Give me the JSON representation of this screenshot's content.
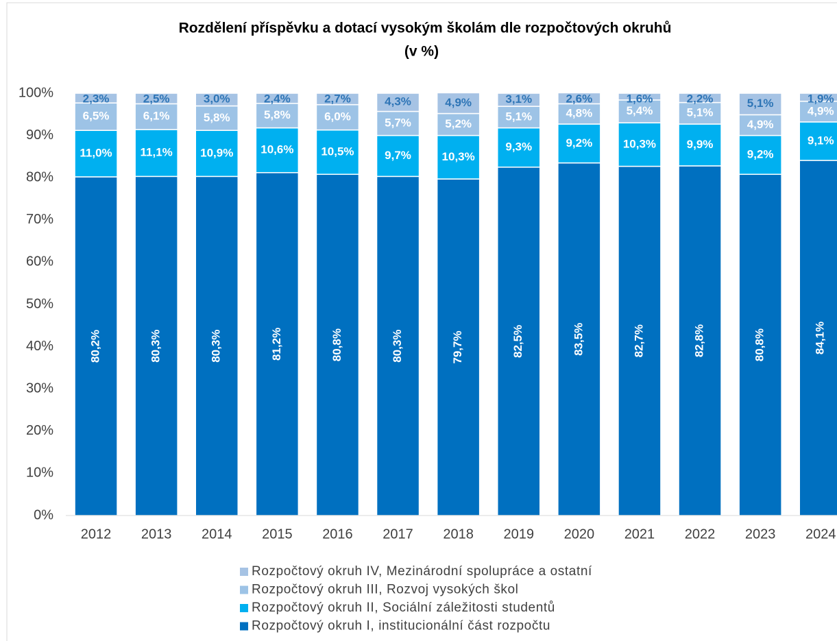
{
  "chart_data": {
    "type": "stacked_bar",
    "title": [
      "Rozdělení příspěvku a dotací vysokým školám dle rozpočtových okruhů",
      "(v %)"
    ],
    "categories": [
      "2012",
      "2013",
      "2014",
      "2015",
      "2016",
      "2017",
      "2018",
      "2019",
      "2020",
      "2021",
      "2022",
      "2023",
      "2024"
    ],
    "series": [
      {
        "name": "Rozpočtový okruh I, institucionální část rozpočtu",
        "color": "#0070c0",
        "label_color": "#ffffff",
        "values": [
          80.2,
          80.3,
          80.3,
          81.2,
          80.8,
          80.3,
          79.7,
          82.5,
          83.5,
          82.7,
          82.8,
          80.8,
          84.1
        ],
        "value_labels": [
          "80,2%",
          "80,3%",
          "80,3%",
          "81,2%",
          "80,8%",
          "80,3%",
          "79,7%",
          "82,5%",
          "83,5%",
          "82,7%",
          "82,8%",
          "80,8%",
          "84,1%"
        ]
      },
      {
        "name": "Rozpočtový okruh II, Sociální záležitosti studentů",
        "color": "#00b0f0",
        "label_color": "#ffffff",
        "values": [
          11.0,
          11.1,
          10.9,
          10.6,
          10.5,
          9.7,
          10.3,
          9.3,
          9.2,
          10.3,
          9.9,
          9.2,
          9.1
        ],
        "value_labels": [
          "11,0%",
          "11,1%",
          "10,9%",
          "10,6%",
          "10,5%",
          "9,7%",
          "10,3%",
          "9,3%",
          "9,2%",
          "10,3%",
          "9,9%",
          "9,2%",
          "9,1%"
        ]
      },
      {
        "name": "Rozpočtový okruh III, Rozvoj vysokých škol",
        "color": "#9dc3e6",
        "label_color": "#ffffff",
        "values": [
          6.5,
          6.1,
          5.8,
          5.8,
          6.0,
          5.7,
          5.2,
          5.1,
          4.8,
          5.4,
          5.1,
          4.9,
          4.9
        ],
        "value_labels": [
          "6,5%",
          "6,1%",
          "5,8%",
          "5,8%",
          "6,0%",
          "5,7%",
          "5,2%",
          "5,1%",
          "4,8%",
          "5,4%",
          "5,1%",
          "4,9%",
          "4,9%"
        ]
      },
      {
        "name": "Rozpočtový okruh IV, Mezinárodní spolupráce a ostatní",
        "color": "#a6c3e4",
        "label_color": "#2e75b6",
        "values": [
          2.3,
          2.5,
          3.0,
          2.4,
          2.7,
          4.3,
          4.9,
          3.1,
          2.6,
          1.6,
          2.2,
          5.1,
          1.9
        ],
        "value_labels": [
          "2,3%",
          "2,5%",
          "3,0%",
          "2,4%",
          "2,7%",
          "4,3%",
          "4,9%",
          "3,1%",
          "2,6%",
          "1,6%",
          "2,2%",
          "5,1%",
          "1,9%"
        ]
      }
    ],
    "ylim": [
      0,
      100
    ],
    "yticks": [
      {
        "value": 0,
        "label": "0%"
      },
      {
        "value": 10,
        "label": "10%"
      },
      {
        "value": 20,
        "label": "20%"
      },
      {
        "value": 30,
        "label": "30%"
      },
      {
        "value": 40,
        "label": "40%"
      },
      {
        "value": 50,
        "label": "50%"
      },
      {
        "value": 60,
        "label": "60%"
      },
      {
        "value": 70,
        "label": "70%"
      },
      {
        "value": 80,
        "label": "80%"
      },
      {
        "value": 90,
        "label": "90%"
      },
      {
        "value": 100,
        "label": "100%"
      }
    ],
    "legend": "bottom"
  }
}
